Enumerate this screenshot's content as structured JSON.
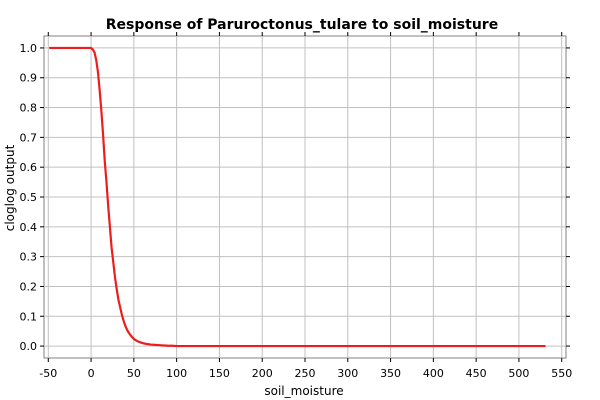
{
  "chart_data": {
    "type": "line",
    "title": "Response of Paruroctonus_tulare to soil_moisture",
    "xlabel": "soil_moisture",
    "ylabel": "cloglog output",
    "xlim": [
      -55,
      555
    ],
    "ylim": [
      -0.04,
      1.04
    ],
    "xticks": [
      -50,
      0,
      50,
      100,
      150,
      200,
      250,
      300,
      350,
      400,
      450,
      500,
      550
    ],
    "yticks": [
      0.0,
      0.1,
      0.2,
      0.3,
      0.4,
      0.5,
      0.6,
      0.7,
      0.8,
      0.9,
      1.0
    ],
    "grid": true,
    "series": [
      {
        "color": "#ee1c1c",
        "x": [
          -48,
          0,
          2,
          4,
          6,
          8,
          10,
          12,
          14,
          16,
          18,
          20,
          22,
          24,
          26,
          28,
          30,
          32,
          34,
          36,
          38,
          40,
          42,
          44,
          46,
          48,
          50,
          52,
          55,
          60,
          65,
          70,
          75,
          80,
          85,
          90,
          95,
          100,
          150,
          200,
          250,
          300,
          350,
          400,
          450,
          500,
          530
        ],
        "y": [
          1.0,
          1.0,
          0.995,
          0.985,
          0.96,
          0.92,
          0.86,
          0.79,
          0.71,
          0.62,
          0.55,
          0.47,
          0.4,
          0.33,
          0.28,
          0.23,
          0.19,
          0.155,
          0.13,
          0.105,
          0.085,
          0.068,
          0.055,
          0.045,
          0.037,
          0.03,
          0.024,
          0.02,
          0.015,
          0.01,
          0.007,
          0.005,
          0.004,
          0.003,
          0.002,
          0.001,
          0.001,
          0.0,
          0.0,
          0.0,
          0.0,
          0.0,
          0.0,
          0.0,
          0.0,
          0.0,
          0.0
        ]
      }
    ]
  }
}
